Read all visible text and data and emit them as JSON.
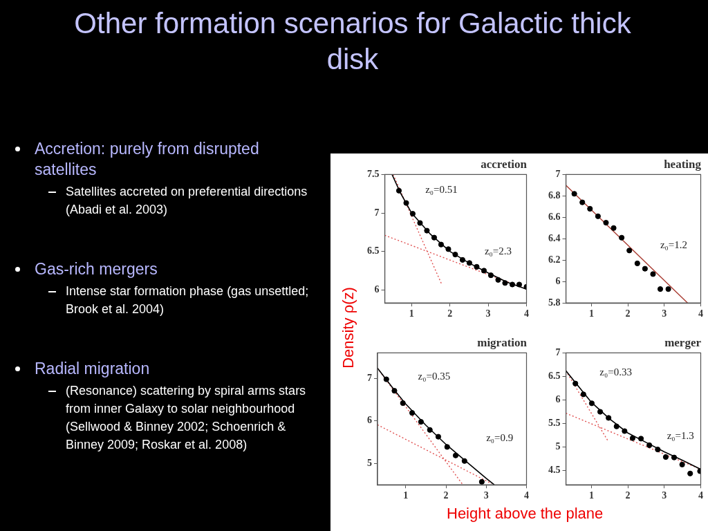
{
  "chart_data": [
    {
      "type": "other",
      "title": "Other formation scenarios for Galactic thick disk",
      "annotations": [
        "Accretion: purely from disrupted satellites",
        "Satellites accreted on preferential directions (Abadi et al. 2003)",
        "Gas-rich mergers",
        "Intense star formation phase (gas unsettled; Brook et al. 2004)",
        "Radial migration",
        "(Resonance) scattering by spiral arms stars from inner Galaxy to solar neighbourhood (Sellwood & Binney 2002; Schoenrich & Binney 2009; Roskar et al. 2008)"
      ]
    },
    {
      "type": "scatter",
      "title": "accretion",
      "xlim": [
        0.3,
        4
      ],
      "xticks": [
        1,
        2,
        3,
        4
      ],
      "ylim": [
        5.83,
        7.5
      ],
      "yticks": [
        6,
        6.5,
        7,
        7.5
      ],
      "grid": false,
      "series": [
        {
          "type": "scatter",
          "color": "#000000",
          "marker": "circle",
          "x": [
            0.67,
            0.86,
            1.03,
            1.22,
            1.4,
            1.59,
            1.77,
            1.96,
            2.14,
            2.33,
            2.51,
            2.7,
            2.89,
            3.07,
            3.26,
            3.44,
            3.63,
            3.81,
            4.0
          ],
          "values": [
            7.29,
            7.13,
            6.99,
            6.87,
            6.77,
            6.68,
            6.59,
            6.53,
            6.46,
            6.39,
            6.35,
            6.3,
            6.25,
            6.19,
            6.13,
            6.09,
            6.07,
            6.07,
            6.04
          ]
        },
        {
          "type": "line",
          "color": "#000000",
          "marker": "none",
          "line_style": "solid",
          "x": [
            0.49,
            0.7,
            1.0,
            1.5,
            2.0,
            2.5,
            3.0,
            3.5,
            4.0
          ],
          "values": [
            7.5,
            7.27,
            7.0,
            6.72,
            6.5,
            6.35,
            6.22,
            6.1,
            6.01
          ]
        },
        {
          "type": "line",
          "color": "#e05050",
          "marker": "none",
          "line_style": "dotted",
          "x": [
            0.52,
            1.78
          ],
          "values": [
            7.5,
            6.08
          ]
        },
        {
          "type": "line",
          "color": "#e05050",
          "marker": "none",
          "line_style": "dotted",
          "x": [
            0.3,
            4.0
          ],
          "values": [
            6.71,
            6.01
          ]
        }
      ],
      "annotations": [
        "z₀=0.51",
        "z₀=2.3"
      ]
    },
    {
      "type": "scatter",
      "title": "heating",
      "xlim": [
        0.3,
        4
      ],
      "xticks": [
        1,
        2,
        3,
        4
      ],
      "ylim": [
        5.8,
        7
      ],
      "yticks": [
        5.8,
        6,
        6.2,
        6.4,
        6.6,
        6.8,
        7
      ],
      "grid": false,
      "series": [
        {
          "type": "scatter",
          "color": "#000000",
          "marker": "circle",
          "x": [
            0.53,
            0.75,
            0.96,
            1.18,
            1.4,
            1.61,
            1.83,
            2.04,
            2.26,
            2.47,
            2.69,
            2.89,
            3.11
          ],
          "values": [
            6.82,
            6.74,
            6.68,
            6.61,
            6.55,
            6.5,
            6.41,
            6.29,
            6.17,
            6.12,
            6.07,
            5.93,
            5.93
          ]
        },
        {
          "type": "line",
          "color": "#a83a30",
          "marker": "none",
          "line_style": "solid",
          "x": [
            0.3,
            3.64
          ],
          "values": [
            6.9,
            5.8
          ]
        }
      ],
      "annotations": [
        "z₀=1.2"
      ]
    },
    {
      "type": "scatter",
      "title": "migration",
      "ylabel": "Density ρ(z)",
      "xlabel": "Height above the plane",
      "xlim": [
        0.3,
        4
      ],
      "xticks": [
        1,
        2,
        3,
        4
      ],
      "ylim": [
        4.5,
        7.6
      ],
      "yticks": [
        5,
        6,
        7
      ],
      "grid": false,
      "series": [
        {
          "type": "scatter",
          "color": "#000000",
          "marker": "circle",
          "x": [
            0.52,
            0.72,
            0.93,
            1.16,
            1.38,
            1.6,
            1.81,
            2.03,
            2.24,
            2.46,
            2.89
          ],
          "values": [
            6.98,
            6.71,
            6.42,
            6.19,
            5.98,
            5.79,
            5.63,
            5.39,
            5.19,
            5.06,
            4.57
          ]
        },
        {
          "type": "line",
          "color": "#000000",
          "marker": "none",
          "line_style": "solid",
          "x": [
            0.3,
            0.7,
            1.0,
            1.5,
            2.0,
            2.5,
            3.0,
            3.2
          ],
          "values": [
            7.24,
            6.75,
            6.4,
            5.9,
            5.45,
            5.05,
            4.65,
            4.5
          ]
        },
        {
          "type": "line",
          "color": "#e05050",
          "marker": "none",
          "line_style": "dotted",
          "x": [
            0.3,
            2.42
          ],
          "values": [
            7.24,
            4.5
          ]
        },
        {
          "type": "line",
          "color": "#e05050",
          "marker": "none",
          "line_style": "dotted",
          "x": [
            0.3,
            3.13
          ],
          "values": [
            5.91,
            4.53
          ]
        }
      ],
      "annotations": [
        "z₀=0.35",
        "z₀=0.9"
      ]
    },
    {
      "type": "scatter",
      "title": "merger",
      "xlim": [
        0.3,
        4
      ],
      "xticks": [
        1,
        2,
        3,
        4
      ],
      "ylim": [
        4.2,
        7
      ],
      "yticks": [
        4.5,
        5,
        5.5,
        6,
        6.5,
        7
      ],
      "grid": false,
      "series": [
        {
          "type": "scatter",
          "color": "#000000",
          "marker": "circle",
          "x": [
            0.56,
            0.78,
            1.01,
            1.24,
            1.47,
            1.69,
            1.91,
            2.13,
            2.36,
            2.59,
            2.82,
            3.04,
            3.27,
            3.49,
            3.71,
            3.98
          ],
          "values": [
            6.35,
            6.12,
            5.93,
            5.75,
            5.62,
            5.44,
            5.34,
            5.19,
            5.18,
            5.04,
            4.95,
            4.79,
            4.78,
            4.63,
            4.44,
            4.49
          ]
        },
        {
          "type": "line",
          "color": "#000000",
          "marker": "none",
          "line_style": "solid",
          "x": [
            0.3,
            1.0,
            1.5,
            2.0,
            2.5,
            3.0,
            3.5,
            4.0
          ],
          "values": [
            6.62,
            5.95,
            5.6,
            5.3,
            5.1,
            4.9,
            4.72,
            4.53
          ]
        },
        {
          "type": "line",
          "color": "#e05050",
          "marker": "none",
          "line_style": "dotted",
          "x": [
            0.3,
            1.47
          ],
          "values": [
            6.62,
            5.11
          ]
        },
        {
          "type": "line",
          "color": "#e05050",
          "marker": "none",
          "line_style": "dotted",
          "x": [
            0.3,
            4.0
          ],
          "values": [
            5.72,
            4.53
          ]
        }
      ],
      "annotations": [
        "z₀=0.33",
        "z₀=1.3"
      ]
    }
  ]
}
